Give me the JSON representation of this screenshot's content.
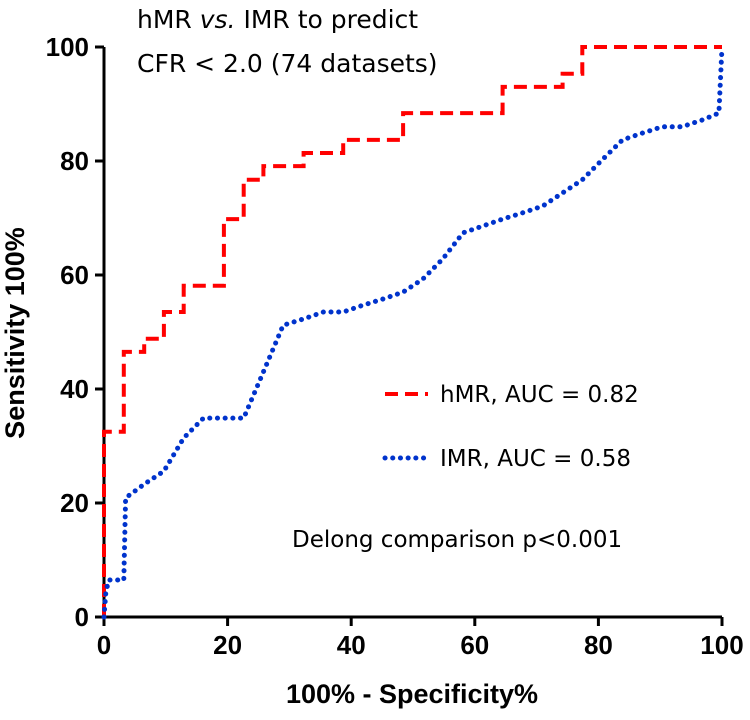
{
  "chart_data": {
    "type": "line",
    "title_line1_pre": "hMR ",
    "title_line1_italic": "vs.",
    "title_line1_post": " IMR to predict",
    "title_line2": "CFR < 2.0 (74 datasets)",
    "xlabel": "100% - Specificity%",
    "ylabel": "Sensitivity 100%",
    "xlim": [
      0,
      100
    ],
    "ylim": [
      0,
      100
    ],
    "xticks": [
      0,
      20,
      40,
      60,
      80,
      100
    ],
    "yticks": [
      0,
      20,
      40,
      60,
      80,
      100
    ],
    "series": [
      {
        "name": "hMR, AUC = 0.82",
        "color": "#ff0000",
        "style": "dashed",
        "x": [
          0,
          0,
          3.2,
          3.2,
          6.5,
          6.5,
          9.7,
          9.7,
          12.9,
          12.9,
          19.4,
          19.4,
          22.6,
          22.6,
          25.8,
          25.8,
          32.3,
          32.3,
          38.7,
          38.7,
          48.4,
          48.4,
          64.5,
          64.5,
          74.2,
          74.2,
          77.4,
          77.4,
          100,
          100
        ],
        "y": [
          0,
          32.5,
          32.5,
          46.5,
          46.5,
          48.8,
          48.8,
          53.5,
          53.5,
          58.1,
          58.1,
          69.8,
          69.8,
          76.7,
          76.7,
          79.1,
          79.1,
          81.4,
          81.4,
          83.7,
          83.7,
          88.4,
          88.4,
          93.0,
          93.0,
          95.3,
          95.3,
          100,
          100,
          100
        ]
      },
      {
        "name": "IMR, AUC = 0.58",
        "color": "#0033cc",
        "style": "dotted",
        "x": [
          0,
          0.3,
          0.8,
          3.2,
          3.5,
          6.5,
          9.7,
          12.9,
          16.1,
          19.4,
          22.6,
          25.8,
          29.0,
          32.3,
          35.5,
          38.7,
          41.9,
          45.2,
          48.4,
          51.6,
          54.8,
          58.1,
          61.3,
          64.5,
          67.7,
          71.0,
          74.2,
          77.4,
          80.6,
          83.9,
          87.1,
          90.3,
          93.5,
          96.8,
          99.5,
          100
        ],
        "y": [
          0,
          4.5,
          6.5,
          6.5,
          20.9,
          23.3,
          25.6,
          31.4,
          34.9,
          34.9,
          34.9,
          43.0,
          51.2,
          52.3,
          53.5,
          53.5,
          54.7,
          55.8,
          57.0,
          59.3,
          62.8,
          67.4,
          68.6,
          69.8,
          70.9,
          72.1,
          74.4,
          76.7,
          80.2,
          83.7,
          84.9,
          86.0,
          86.0,
          87.2,
          88.4,
          100
        ]
      }
    ],
    "annotation": "Delong comparison p<0.001",
    "legend_position": "lower-right"
  }
}
